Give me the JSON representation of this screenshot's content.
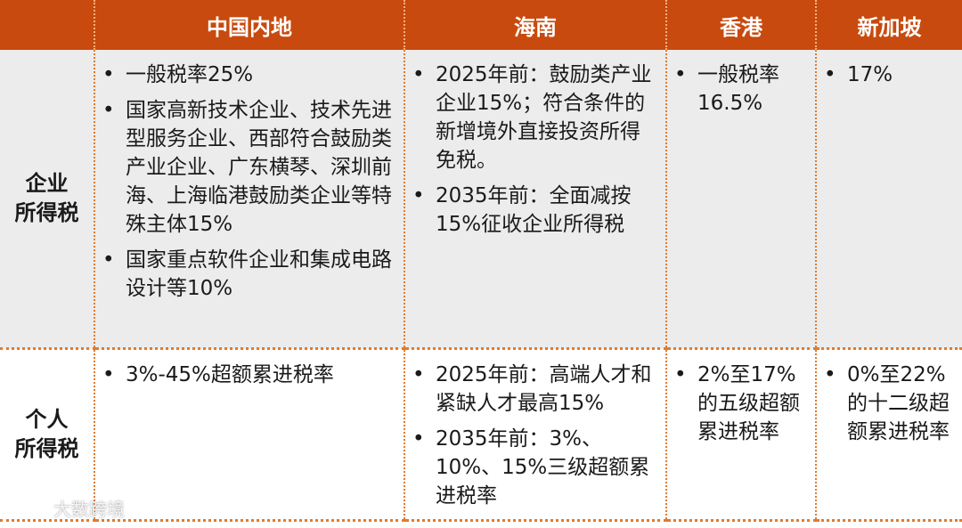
{
  "table": {
    "columns": [
      "",
      "中国内地",
      "海南",
      "香港",
      "新加坡"
    ],
    "rows": [
      {
        "header": "企业\n所得税",
        "mainland": [
          "一般税率25%",
          "国家高新技术企业、技术先进型服务企业、西部符合鼓励类产业企业、广东横琴、深圳前海、上海临港鼓励类企业等特殊主体15%",
          "国家重点软件企业和集成电路设计等10%"
        ],
        "hainan": [
          "2025年前：鼓励类产业企业15%；符合条件的新增境外直接投资所得免税。",
          "2035年前：全面减按15%征收企业所得税"
        ],
        "hongkong": [
          "一般税率16.5%"
        ],
        "singapore": [
          "17%"
        ]
      },
      {
        "header": "个人\n所得税",
        "mainland": [
          "3%-45%超额累进税率"
        ],
        "hainan": [
          "2025年前：高端人才和紧缺人才最高15%",
          "2035年前：3%、10%、15%三级超额累进税率"
        ],
        "hongkong": [
          "2%至17%的五级超额累进税率"
        ],
        "singapore": [
          "0%至22%的十二级超额累进税率"
        ]
      }
    ]
  },
  "watermark": {
    "text": "大数跨境",
    "logo": "bigdata-logo-icon"
  },
  "colors": {
    "header_bg": "#c84a0e",
    "row1_bg": "#ececec",
    "divider": "#e07b2e"
  }
}
